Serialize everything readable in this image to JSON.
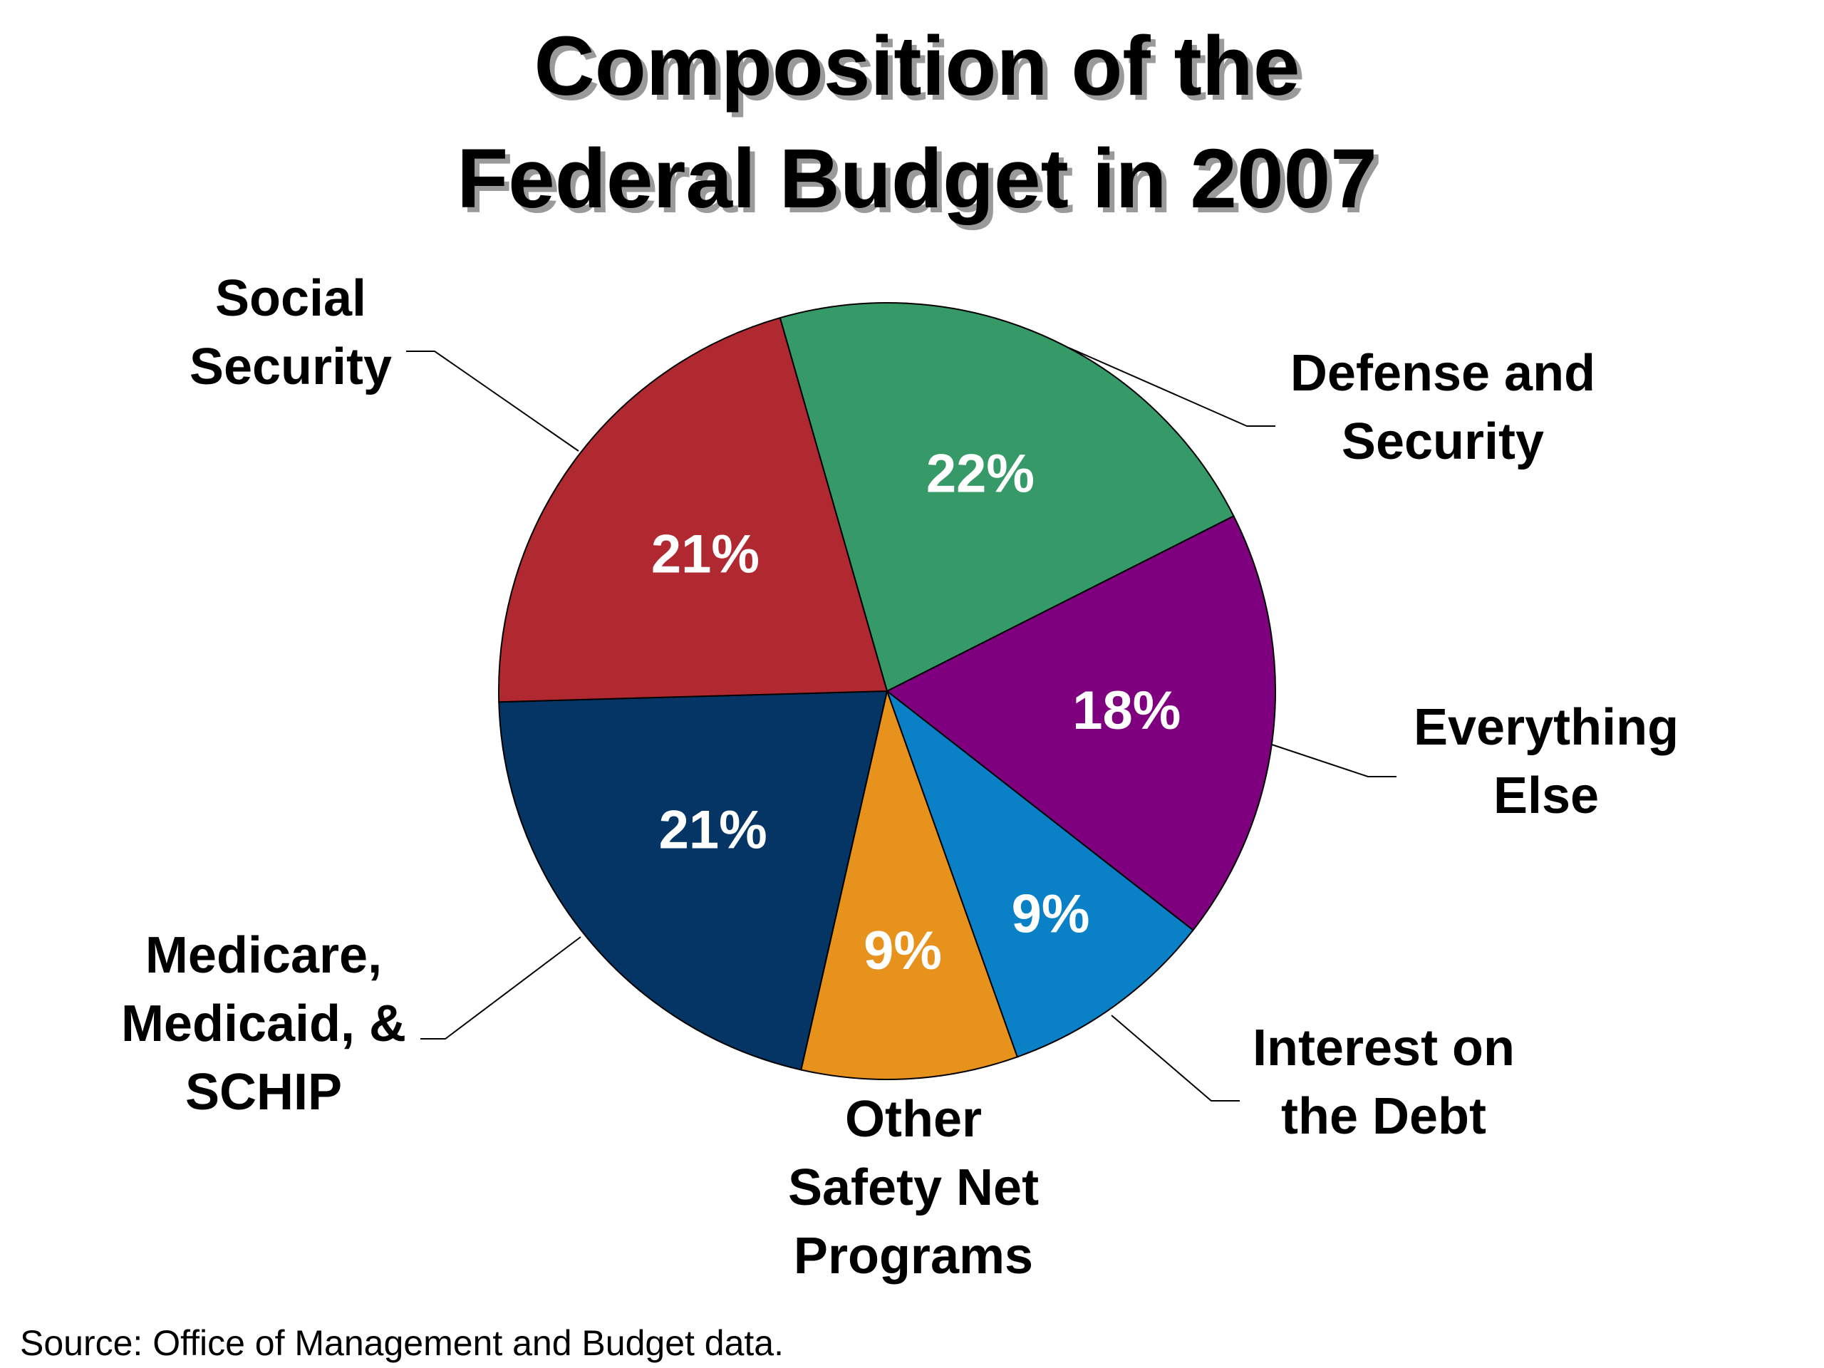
{
  "chart_data": {
    "type": "pie",
    "title": [
      "Composition of the",
      "Federal Budget in 2007"
    ],
    "slices": [
      {
        "name": "Defense and Security",
        "label_lines": [
          "Defense and",
          "Security"
        ],
        "value": 22,
        "pct_label": "22%",
        "color": "#369a68"
      },
      {
        "name": "Everything Else",
        "label_lines": [
          "Everything",
          "Else"
        ],
        "value": 18,
        "pct_label": "18%",
        "color": "#7e007e"
      },
      {
        "name": "Interest on the Debt",
        "label_lines": [
          "Interest on",
          "the Debt"
        ],
        "value": 9,
        "pct_label": "9%",
        "color": "#0a80c6"
      },
      {
        "name": "Other Safety Net Programs",
        "label_lines": [
          "Other",
          "Safety Net",
          "Programs"
        ],
        "value": 9,
        "pct_label": "9%",
        "color": "#e8921e"
      },
      {
        "name": "Medicare, Medicaid, & SCHIP",
        "label_lines": [
          "Medicare,",
          "Medicaid, &",
          "SCHIP"
        ],
        "value": 21,
        "pct_label": "21%",
        "color": "#043565"
      },
      {
        "name": "Social Security",
        "label_lines": [
          "Social",
          "Security"
        ],
        "value": 21,
        "pct_label": "21%",
        "color": "#b02830"
      }
    ],
    "source": "Source: Office of Management and Budget data."
  }
}
